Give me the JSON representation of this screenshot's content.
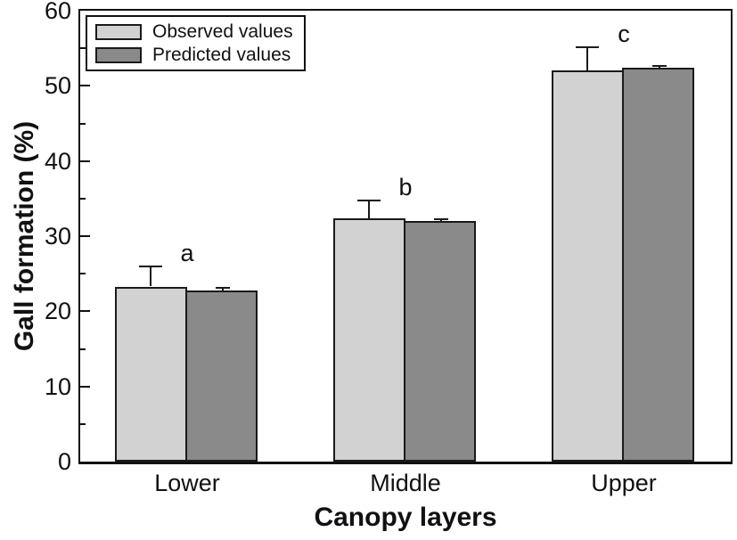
{
  "chart_data": {
    "type": "bar",
    "title": "",
    "xlabel": "Canopy layers",
    "ylabel": "Gall formation (%)",
    "categories": [
      "Lower",
      "Middle",
      "Upper"
    ],
    "series": [
      {
        "name": "Observed values",
        "color": "#d2d2d2",
        "values": [
          23.3,
          32.4,
          52.0
        ],
        "errors_plus": [
          2.7,
          2.4,
          3.1
        ]
      },
      {
        "name": "Predicted values",
        "color": "#8a8a8a",
        "values": [
          22.8,
          32.0,
          52.4
        ],
        "errors_plus": [
          0.3,
          0.3,
          0.3
        ]
      }
    ],
    "significance_letters": [
      "a",
      "b",
      "c"
    ],
    "ylim": [
      0,
      60
    ],
    "ytick_major_step": 10,
    "ytick_minor_step": 5,
    "ytick_labels": [
      "0",
      "10",
      "20",
      "30",
      "40",
      "50",
      "60"
    ],
    "error_bars": "upper-only",
    "grid": false,
    "legend_position": "top-left",
    "frame": "full-box",
    "colors": {
      "axis": "#111111",
      "bar_border": "#1a1a1a",
      "background": "#ffffff"
    }
  }
}
